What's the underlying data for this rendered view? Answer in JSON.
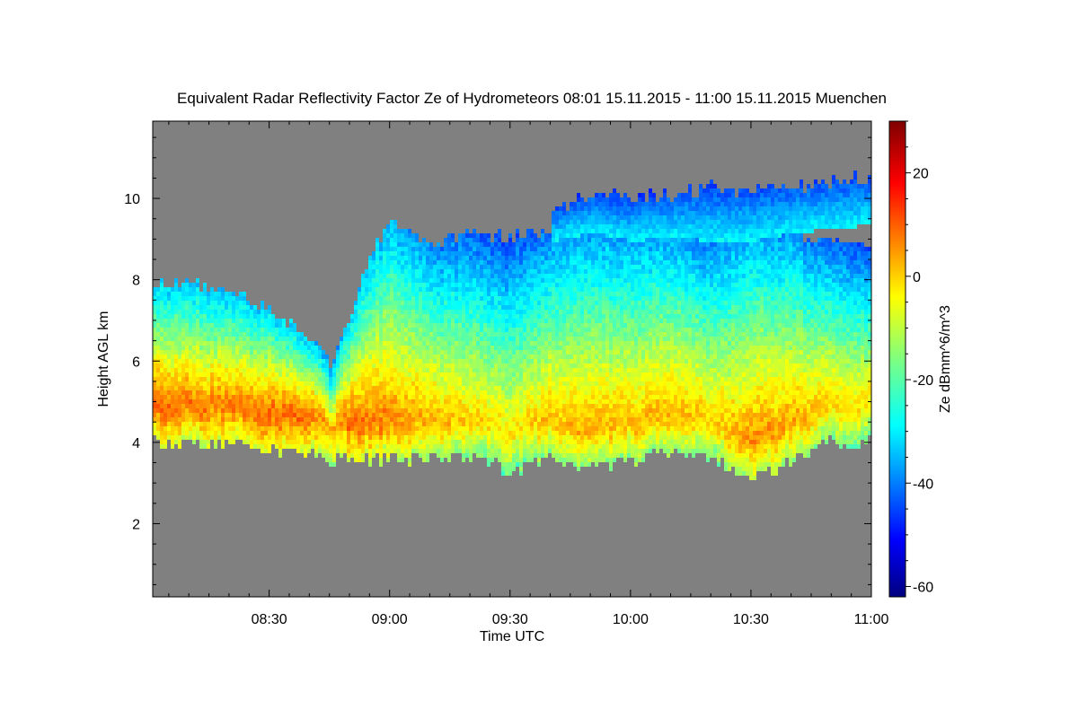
{
  "chart_data": {
    "type": "heatmap",
    "title": "Equivalent Radar Reflectivity Factor Ze of Hydrometeors   08:01 15.11.2015 - 11:00 15.11.2015 Muenchen",
    "xlabel": "Time UTC",
    "ylabel": "Height AGL km",
    "colorbar_label": "Ze dBmm^6/m^3",
    "x_ticks": [
      "08:30",
      "09:00",
      "09:30",
      "10:00",
      "10:30",
      "11:00"
    ],
    "x_tick_minutes": [
      30,
      60,
      90,
      120,
      150,
      180
    ],
    "xlim_minutes": [
      1,
      180
    ],
    "y_ticks": [
      2,
      4,
      6,
      8,
      10
    ],
    "ylim": [
      0.2,
      11.9
    ],
    "colorbar_ticks": [
      20,
      0,
      -20,
      -40,
      -60
    ],
    "zlim": [
      -62,
      30
    ],
    "no_data_color": "#808080",
    "colormap": "jet",
    "cloud": {
      "time_minutes": [
        1,
        10,
        20,
        30,
        40,
        45,
        50,
        55,
        60,
        65,
        70,
        80,
        90,
        100,
        110,
        120,
        130,
        140,
        150,
        160,
        170,
        180
      ],
      "base_km": [
        4.1,
        4.0,
        4.0,
        3.9,
        3.8,
        3.6,
        3.7,
        3.6,
        3.7,
        3.6,
        3.7,
        3.7,
        3.3,
        3.7,
        3.5,
        3.6,
        3.8,
        3.6,
        3.1,
        3.6,
        4.1,
        4.0
      ],
      "top_km": [
        8.0,
        8.0,
        7.8,
        7.3,
        6.6,
        6.0,
        7.2,
        8.8,
        9.5,
        9.2,
        8.9,
        9.2,
        9.1,
        9.3,
        9.6,
        9.6,
        9.4,
        9.3,
        9.3,
        9.2,
        9.0,
        9.0
      ],
      "peak_ze": [
        10,
        8,
        8,
        10,
        9,
        3,
        10,
        8,
        7,
        5,
        3,
        0,
        -2,
        2,
        3,
        2,
        3,
        0,
        6,
        4,
        0,
        -2
      ]
    },
    "upper_cloud": {
      "time_minutes": [
        100,
        110,
        120,
        130,
        140,
        150,
        160,
        170,
        180
      ],
      "base_km": [
        9.0,
        9.2,
        9.0,
        9.1,
        9.0,
        9.0,
        9.2,
        9.3,
        9.4
      ],
      "top_km": [
        9.8,
        10.2,
        10.0,
        10.2,
        10.3,
        10.3,
        10.4,
        10.5,
        10.6
      ]
    }
  }
}
